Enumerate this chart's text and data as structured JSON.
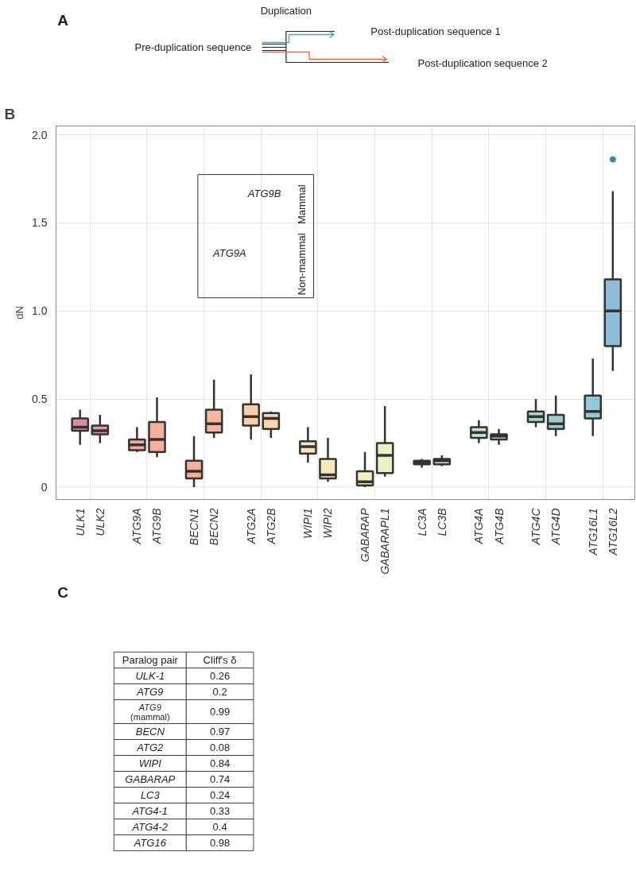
{
  "chart_data": [
    {
      "type": "other",
      "annotations": [
        "A",
        "Duplication",
        "Pre-duplication sequence",
        "Post-duplication sequence 1",
        "Post-duplication sequence 2"
      ]
    },
    {
      "type": "box",
      "ylabel": "dN",
      "categories": [
        "ULK1",
        "ULK2",
        "ATG9A",
        "ATG9B",
        "BECN1",
        "BECN2",
        "ATG2A",
        "ATG2B",
        "WIPI1",
        "WIPI2",
        "GABARAP",
        "GABARAPL1",
        "LC3A",
        "LC3B",
        "ATG4A",
        "ATG4B",
        "ATG4C",
        "ATG4D",
        "ATG16L1",
        "ATG16L2"
      ],
      "colors": [
        "#c8304e",
        "#d23f4e",
        "#e8604a",
        "#ec6e48",
        "#ee6a45",
        "#f07c4a",
        "#f5a55f",
        "#f6b46c",
        "#f7cf7a",
        "#efd582",
        "#e8e08a",
        "#d6e58f",
        "#b8e08e",
        "#a8dc90",
        "#8fd1a0",
        "#78c8a0",
        "#5ab5a0",
        "#4aa5a5",
        "#3a9ab5",
        "#3585b8"
      ],
      "boxes": [
        {
          "low": 0.24,
          "q1": 0.32,
          "median": 0.34,
          "q3": 0.39,
          "high": 0.44
        },
        {
          "low": 0.25,
          "q1": 0.3,
          "median": 0.32,
          "q3": 0.35,
          "high": 0.41
        },
        {
          "low": 0.2,
          "q1": 0.21,
          "median": 0.24,
          "q3": 0.27,
          "high": 0.34
        },
        {
          "low": 0.17,
          "q1": 0.2,
          "median": 0.27,
          "q3": 0.37,
          "high": 0.51
        },
        {
          "low": 0.0,
          "q1": 0.05,
          "median": 0.09,
          "q3": 0.15,
          "high": 0.29
        },
        {
          "low": 0.28,
          "q1": 0.31,
          "median": 0.36,
          "q3": 0.44,
          "high": 0.61
        },
        {
          "low": 0.27,
          "q1": 0.35,
          "median": 0.4,
          "q3": 0.47,
          "high": 0.64
        },
        {
          "low": 0.28,
          "q1": 0.33,
          "median": 0.39,
          "q3": 0.42,
          "high": 0.43
        },
        {
          "low": 0.14,
          "q1": 0.19,
          "median": 0.23,
          "q3": 0.26,
          "high": 0.34
        },
        {
          "low": 0.03,
          "q1": 0.05,
          "median": 0.07,
          "q3": 0.16,
          "high": 0.28
        },
        {
          "low": 0.0,
          "q1": 0.01,
          "median": 0.03,
          "q3": 0.09,
          "high": 0.2
        },
        {
          "low": 0.06,
          "q1": 0.08,
          "median": 0.18,
          "q3": 0.25,
          "high": 0.46
        },
        {
          "low": 0.11,
          "q1": 0.13,
          "median": 0.14,
          "q3": 0.15,
          "high": 0.16
        },
        {
          "low": 0.12,
          "q1": 0.13,
          "median": 0.15,
          "q3": 0.16,
          "high": 0.18
        },
        {
          "low": 0.25,
          "q1": 0.28,
          "median": 0.31,
          "q3": 0.34,
          "high": 0.38
        },
        {
          "low": 0.24,
          "q1": 0.27,
          "median": 0.29,
          "q3": 0.3,
          "high": 0.33
        },
        {
          "low": 0.34,
          "q1": 0.37,
          "median": 0.4,
          "q3": 0.43,
          "high": 0.5
        },
        {
          "low": 0.29,
          "q1": 0.33,
          "median": 0.36,
          "q3": 0.41,
          "high": 0.52
        },
        {
          "low": 0.29,
          "q1": 0.39,
          "median": 0.43,
          "q3": 0.52,
          "high": 0.73
        },
        {
          "low": 0.66,
          "q1": 0.8,
          "median": 1.0,
          "q3": 1.18,
          "high": 1.68,
          "outliers": [
            1.86
          ]
        }
      ],
      "ylim": [
        -0.07,
        2.05
      ],
      "yticks": [
        0,
        0.5,
        {
          "value": 1,
          "label": "1.0"
        },
        1.5,
        {
          "value": 2,
          "label": "2.0"
        }
      ],
      "grid": true,
      "annotations": [
        "B",
        "ATG9A",
        "ATG9B",
        "Mammal",
        "Non-mammal"
      ]
    },
    {
      "type": "other",
      "annotations": [
        "C",
        "Paralog pair",
        "Cliff's δ",
        "ULK-1",
        "0.26",
        "ATG9",
        "0.2",
        "ATG9 (mammal)",
        "0.99",
        "BECN",
        "0.97",
        "ATG2",
        "0.08",
        "WIPI",
        "0.84",
        "GABARAP",
        "0.74",
        "LC3",
        "0.24",
        "ATG4-1",
        "0.33",
        "ATG4-2",
        "0.4",
        "ATG16",
        "0.98"
      ]
    }
  ]
}
